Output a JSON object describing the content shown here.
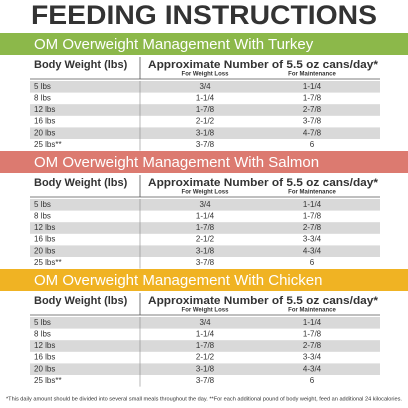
{
  "title": "FEEDING INSTRUCTIONS",
  "sections": [
    {
      "heading": "OM Overweight Management With Turkey",
      "columns": [
        "Body Weight (lbs)",
        "Approximate Number of 5.5 oz cans/day*"
      ],
      "subcolumns": [
        "For Weight Loss",
        "For Maintenance"
      ],
      "rows": [
        [
          "5 lbs",
          "3/4",
          "1-1/4"
        ],
        [
          "8 lbs",
          "1-1/4",
          "1-7/8"
        ],
        [
          "12 lbs",
          "1-7/8",
          "2-7/8"
        ],
        [
          "16 lbs",
          "2-1/2",
          "3-7/8"
        ],
        [
          "20 lbs",
          "3-1/8",
          "4-7/8"
        ],
        [
          "25 lbs**",
          "3-7/8",
          "6"
        ]
      ]
    },
    {
      "heading": "OM Overweight Management With Salmon",
      "columns": [
        "Body Weight (lbs)",
        "Approximate Number of 5.5 oz cans/day*"
      ],
      "subcolumns": [
        "For Weight Loss",
        "For Maintenance"
      ],
      "rows": [
        [
          "5 lbs",
          "3/4",
          "1-1/4"
        ],
        [
          "8 lbs",
          "1-1/4",
          "1-7/8"
        ],
        [
          "12 lbs",
          "1-7/8",
          "2-7/8"
        ],
        [
          "16 lbs",
          "2-1/2",
          "3-3/4"
        ],
        [
          "20 lbs",
          "3-1/8",
          "4-3/4"
        ],
        [
          "25 lbs**",
          "3-7/8",
          "6"
        ]
      ]
    },
    {
      "heading": "OM Overweight Management With Chicken",
      "columns": [
        "Body Weight (lbs)",
        "Approximate Number of 5.5 oz cans/day*"
      ],
      "subcolumns": [
        "For Weight Loss",
        "For Maintenance"
      ],
      "rows": [
        [
          "5 lbs",
          "3/4",
          "1-1/4"
        ],
        [
          "8 lbs",
          "1-1/4",
          "1-7/8"
        ],
        [
          "12 lbs",
          "1-7/8",
          "2-7/8"
        ],
        [
          "16 lbs",
          "2-1/2",
          "3-3/4"
        ],
        [
          "20 lbs",
          "3-1/8",
          "4-3/4"
        ],
        [
          "25 lbs**",
          "3-7/8",
          "6"
        ]
      ]
    }
  ],
  "footnote": "*This daily amount should be divided into several small meals throughout the day. **For each additional pound of body weight, feed an additional 24 kilocalories."
}
